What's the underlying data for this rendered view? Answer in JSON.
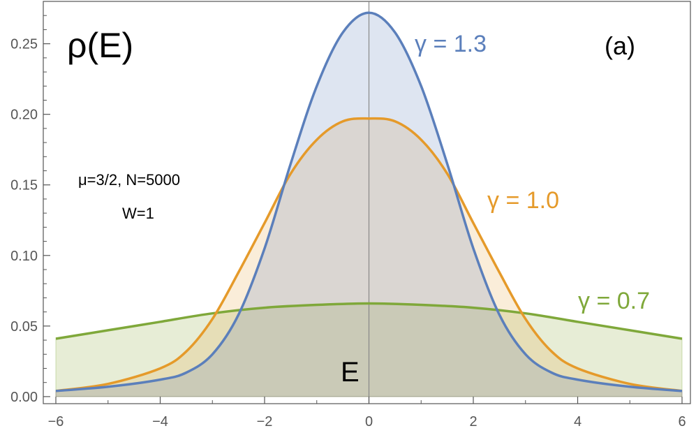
{
  "chart_data": {
    "type": "area",
    "title": "ρ(E)",
    "xlabel": "E",
    "ylabel": "",
    "xlim": [
      -6,
      6
    ],
    "ylim": [
      -0.005,
      0.28
    ],
    "x_ticks": [
      "−6",
      "−4",
      "−2",
      "0",
      "2",
      "4",
      "6"
    ],
    "y_ticks": [
      "0.00",
      "0.05",
      "0.10",
      "0.15",
      "0.20",
      "0.25"
    ],
    "panel_label": "(a)",
    "annotation_line1": "μ=3/2, N=5000",
    "annotation_line2": "W=1",
    "series": [
      {
        "name": "γ = 1.3",
        "color": "#5b7fbb",
        "fill": "rgba(91,127,187,0.20)",
        "x": [
          -6,
          -5,
          -4,
          -3.5,
          -3,
          -2.5,
          -2,
          -1.5,
          -1,
          -0.5,
          0,
          0.5,
          1,
          1.5,
          2,
          2.5,
          3,
          3.5,
          4,
          5,
          6
        ],
        "y": [
          0.004,
          0.007,
          0.012,
          0.017,
          0.03,
          0.058,
          0.105,
          0.165,
          0.22,
          0.258,
          0.272,
          0.258,
          0.22,
          0.165,
          0.105,
          0.058,
          0.03,
          0.017,
          0.012,
          0.007,
          0.004
        ]
      },
      {
        "name": "γ = 1.0",
        "color": "#e59a2a",
        "fill": "rgba(229,154,42,0.18)",
        "x": [
          -6,
          -5,
          -4,
          -3.5,
          -3,
          -2.5,
          -2,
          -1.5,
          -1,
          -0.5,
          0,
          0.5,
          1,
          1.5,
          2,
          2.5,
          3,
          3.5,
          4,
          5,
          6
        ],
        "y": [
          0.004,
          0.009,
          0.02,
          0.032,
          0.055,
          0.088,
          0.123,
          0.158,
          0.182,
          0.195,
          0.197,
          0.195,
          0.182,
          0.158,
          0.123,
          0.088,
          0.055,
          0.032,
          0.02,
          0.009,
          0.004
        ]
      },
      {
        "name": "γ = 0.7",
        "color": "#7fa83a",
        "fill": "rgba(145,175,70,0.22)",
        "x": [
          -6,
          -5,
          -4,
          -3,
          -2,
          -1,
          0,
          1,
          2,
          3,
          4,
          5,
          6
        ],
        "y": [
          0.041,
          0.047,
          0.053,
          0.059,
          0.063,
          0.065,
          0.066,
          0.065,
          0.063,
          0.059,
          0.053,
          0.047,
          0.041
        ]
      }
    ]
  }
}
